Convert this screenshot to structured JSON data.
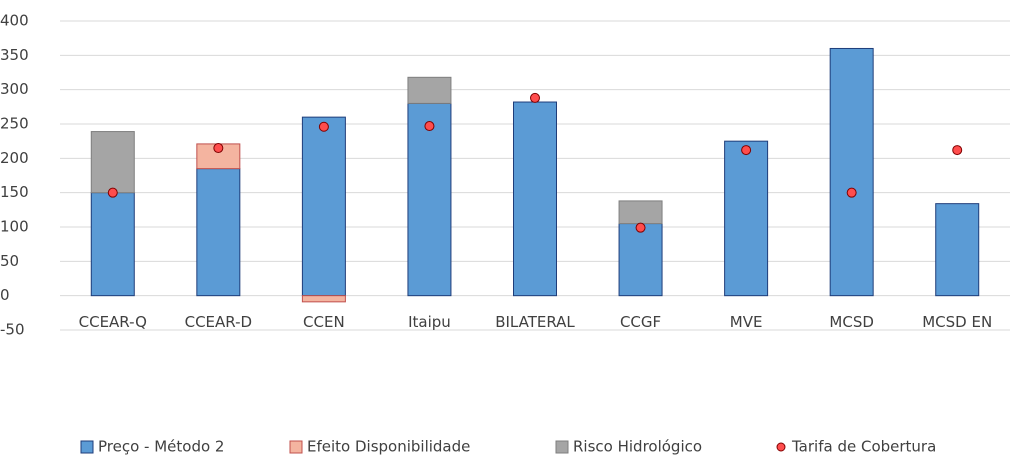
{
  "chart_data": {
    "type": "bar",
    "stacked": true,
    "categories": [
      "CCEAR-Q",
      "CCEAR-D",
      "CCEN",
      "Itaipu",
      "BILATERAL",
      "CCGF",
      "MVE",
      "MCSD",
      "MCSD EN"
    ],
    "series": [
      {
        "name": "Preço - Método 2",
        "type": "bar",
        "color": "#5b9bd5",
        "values": [
          150,
          185,
          260,
          280,
          282,
          105,
          225,
          360,
          134
        ]
      },
      {
        "name": "Efeito Disponibilidade",
        "type": "bar",
        "color": "#f4b4a0",
        "values": [
          0,
          36,
          -9,
          0,
          0,
          0,
          0,
          0,
          0
        ]
      },
      {
        "name": "Risco Hidrológico",
        "type": "bar",
        "color": "#a5a5a5",
        "values": [
          89,
          0,
          0,
          38,
          0,
          33,
          0,
          0,
          0
        ]
      },
      {
        "name": "Tarifa de Cobertura",
        "type": "scatter",
        "color": "#ff4d4d",
        "values": [
          150,
          215,
          246,
          247,
          288,
          99,
          212,
          150,
          212
        ]
      }
    ],
    "ylim": [
      -50,
      400
    ],
    "yticks": [
      -50,
      0,
      50,
      100,
      150,
      200,
      250,
      300,
      350,
      400
    ],
    "grid": true,
    "legend": "bottom"
  }
}
